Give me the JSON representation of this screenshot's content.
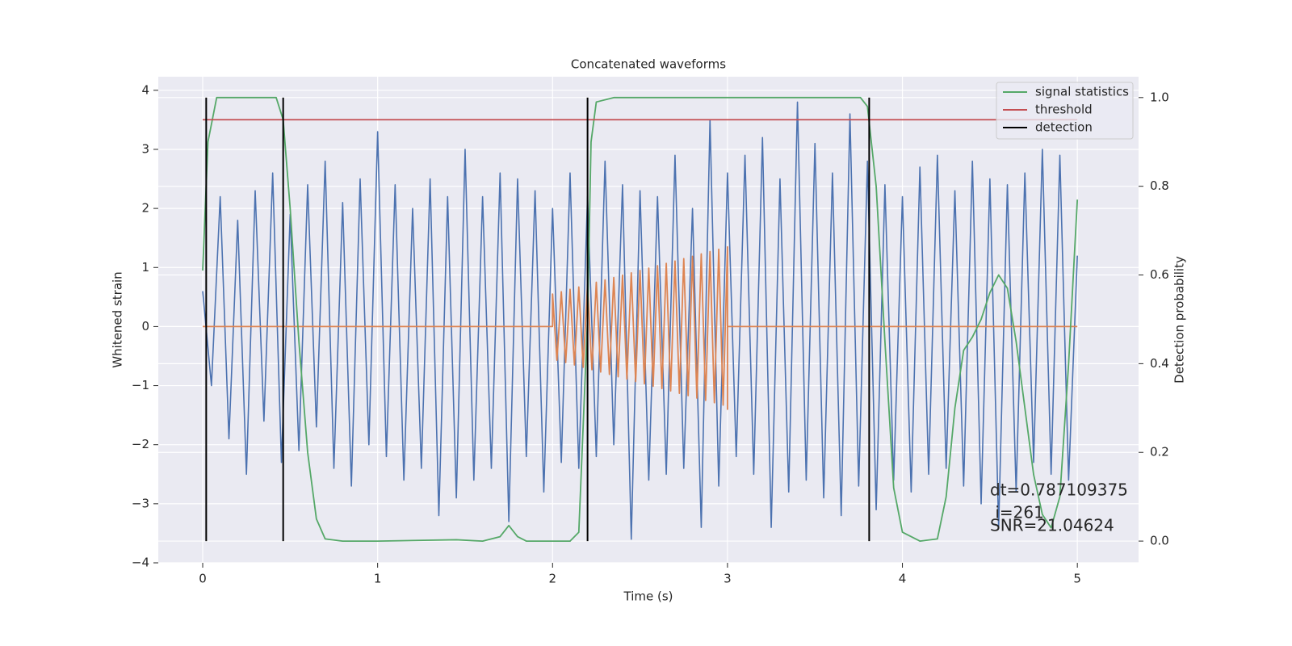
{
  "chart_data": {
    "type": "line",
    "title": "Concatenated waveforms",
    "xlabel": "Time (s)",
    "ylabel": "Whitened strain",
    "y2label": "Detection probability",
    "xlim": [
      -0.254,
      5.35
    ],
    "xticks": [
      0,
      1,
      2,
      3,
      4,
      5
    ],
    "ylim": [
      -4,
      4.23
    ],
    "yticks": [
      {
        "value": -4,
        "label": "−4"
      },
      {
        "value": -3,
        "label": "−3"
      },
      {
        "value": -2,
        "label": "−2"
      },
      {
        "value": -1,
        "label": "−1"
      },
      0,
      1,
      2,
      3,
      4
    ],
    "y2lim": [
      -0.049,
      1.047
    ],
    "y2ticks": [
      {
        "value": 0,
        "label": "0.0"
      },
      0.2,
      0.4,
      0.6,
      0.8,
      {
        "value": 1,
        "label": "1.0"
      }
    ],
    "grid": true,
    "legend": "upper right",
    "series": [
      {
        "color": "#4c72b0",
        "x": [
          0,
          0.05,
          0.1,
          0.15,
          0.2,
          0.25,
          0.3,
          0.35,
          0.4,
          0.45,
          0.5,
          0.55,
          0.6,
          0.65,
          0.7,
          0.75,
          0.8,
          0.85,
          0.9,
          0.95,
          1,
          1.05,
          1.1,
          1.15,
          1.2,
          1.25,
          1.3,
          1.35,
          1.4,
          1.45,
          1.5,
          1.55,
          1.6,
          1.65,
          1.7,
          1.75,
          1.8,
          1.85,
          1.9,
          1.95,
          2,
          2.05,
          2.1,
          2.15,
          2.2,
          2.25,
          2.3,
          2.35,
          2.4,
          2.45,
          2.5,
          2.55,
          2.6,
          2.65,
          2.7,
          2.75,
          2.8,
          2.85,
          2.9,
          2.95,
          3,
          3.05,
          3.1,
          3.15,
          3.2,
          3.25,
          3.3,
          3.35,
          3.4,
          3.45,
          3.5,
          3.55,
          3.6,
          3.65,
          3.7,
          3.75,
          3.8,
          3.85,
          3.9,
          3.95,
          4,
          4.05,
          4.1,
          4.15,
          4.2,
          4.25,
          4.3,
          4.35,
          4.4,
          4.45,
          4.5,
          4.55,
          4.6,
          4.65,
          4.7,
          4.75,
          4.8,
          4.85,
          4.9,
          4.95,
          5
        ],
        "values": [
          0.6,
          -1.0,
          2.2,
          -1.9,
          1.8,
          -2.5,
          2.3,
          -1.6,
          2.6,
          -2.3,
          1.9,
          -2.1,
          2.4,
          -1.7,
          2.8,
          -2.4,
          2.1,
          -2.7,
          2.5,
          -2.0,
          3.3,
          -2.2,
          2.4,
          -2.6,
          2.0,
          -2.4,
          2.5,
          -3.2,
          2.2,
          -2.9,
          3.0,
          -2.6,
          2.2,
          -2.4,
          2.6,
          -3.3,
          2.5,
          -2.2,
          2.3,
          -2.8,
          2.0,
          -2.3,
          2.6,
          -2.4,
          2.2,
          -2.2,
          2.8,
          -2.0,
          2.4,
          -3.6,
          2.3,
          -2.6,
          2.2,
          -2.5,
          2.9,
          -2.4,
          2.0,
          -3.4,
          3.5,
          -2.7,
          2.6,
          -2.2,
          2.9,
          -2.5,
          3.2,
          -3.4,
          2.5,
          -2.8,
          3.8,
          -2.6,
          3.1,
          -2.9,
          2.6,
          -3.2,
          3.6,
          -2.7,
          2.8,
          -3.1,
          2.4,
          -2.6,
          2.2,
          -2.8,
          2.7,
          -2.5,
          2.9,
          -2.4,
          2.3,
          -2.7,
          2.8,
          -3.0,
          2.5,
          -3.4,
          2.4,
          -2.8,
          2.6,
          -2.3,
          3.0,
          -2.5,
          2.9,
          -2.6,
          1.2
        ]
      },
      {
        "color": "#dd8452",
        "x": [
          0,
          2,
          2,
          2.025,
          2.05,
          2.075,
          2.1,
          2.125,
          2.15,
          2.175,
          2.2,
          2.225,
          2.25,
          2.275,
          2.3,
          2.325,
          2.35,
          2.375,
          2.4,
          2.425,
          2.45,
          2.475,
          2.5,
          2.525,
          2.55,
          2.575,
          2.6,
          2.625,
          2.65,
          2.675,
          2.7,
          2.725,
          2.75,
          2.775,
          2.8,
          2.825,
          2.85,
          2.875,
          2.9,
          2.925,
          2.95,
          2.975,
          3,
          3,
          3,
          5
        ],
        "values": [
          0,
          0,
          0.55,
          -0.57,
          0.59,
          -0.61,
          0.63,
          -0.65,
          0.67,
          -0.69,
          0.71,
          -0.73,
          0.75,
          -0.77,
          0.79,
          -0.81,
          0.83,
          -0.85,
          0.87,
          -0.89,
          0.91,
          -0.93,
          0.95,
          -0.97,
          0.99,
          -1.01,
          1.03,
          -1.05,
          1.07,
          -1.09,
          1.11,
          -1.13,
          1.15,
          -1.17,
          1.19,
          -1.21,
          1.23,
          -1.25,
          1.27,
          -1.29,
          1.31,
          -1.33,
          1.35,
          -1.4,
          0,
          0
        ]
      },
      {
        "name": "signal statistics",
        "color": "#55a868",
        "axis": "y2",
        "x": [
          0,
          0.03,
          0.08,
          0.2,
          0.42,
          0.46,
          0.5,
          0.55,
          0.6,
          0.65,
          0.7,
          0.8,
          1,
          1.45,
          1.6,
          1.7,
          1.75,
          1.8,
          1.85,
          2.1,
          2.15,
          2.2,
          2.22,
          2.25,
          2.35,
          3.76,
          3.8,
          3.85,
          3.9,
          3.95,
          4,
          4.1,
          4.2,
          4.25,
          4.3,
          4.35,
          4.4,
          4.45,
          4.5,
          4.55,
          4.6,
          4.65,
          4.7,
          4.75,
          4.8,
          4.85,
          4.9,
          4.95,
          5
        ],
        "values": [
          0.61,
          0.9,
          1,
          1,
          1,
          0.95,
          0.75,
          0.45,
          0.2,
          0.05,
          0.005,
          0,
          0,
          0.003,
          0,
          0.01,
          0.035,
          0.01,
          0,
          0,
          0.02,
          0.5,
          0.9,
          0.99,
          1,
          1,
          0.98,
          0.8,
          0.45,
          0.12,
          0.02,
          0,
          0.005,
          0.1,
          0.3,
          0.43,
          0.46,
          0.5,
          0.56,
          0.6,
          0.57,
          0.45,
          0.3,
          0.15,
          0.06,
          0.03,
          0.1,
          0.4,
          0.77
        ]
      },
      {
        "name": "threshold",
        "color": "#c44e52",
        "axis": "y2",
        "x": [
          0,
          5
        ],
        "values": [
          0.95,
          0.95
        ]
      },
      {
        "name": "detection",
        "color": "#000000",
        "axis": "y2",
        "type": "vlines",
        "x": [
          0.02,
          0.46,
          2.2,
          3.81
        ],
        "ymin": 0,
        "ymax": 1
      }
    ],
    "annotation": [
      "dt=0.787109375",
      " i=261",
      "SNR=21.04624"
    ]
  }
}
